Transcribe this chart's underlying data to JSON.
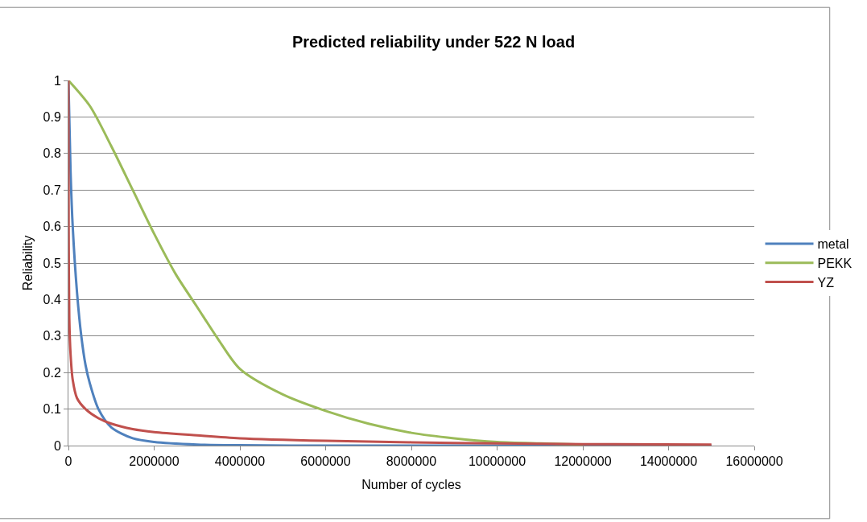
{
  "chart_data": {
    "type": "line",
    "title": "Predicted reliability under 522 N load",
    "xlabel": "Number of cycles",
    "ylabel": "Reliability",
    "xlim": [
      0,
      16000000
    ],
    "xticks": [
      0,
      2000000,
      4000000,
      6000000,
      8000000,
      10000000,
      12000000,
      14000000,
      16000000
    ],
    "ylim": [
      0,
      1
    ],
    "yticks": [
      0,
      0.1,
      0.2,
      0.3,
      0.4,
      0.5,
      0.6,
      0.7,
      0.8,
      0.9,
      1
    ],
    "grid": "y",
    "legend": "right",
    "marker": "none",
    "line_style": "solid",
    "series": [
      {
        "name": "metal",
        "color": "#4f81bd",
        "x": [
          0,
          50000,
          100000,
          200000,
          300000,
          400000,
          500000,
          700000,
          1000000,
          1500000,
          2000000,
          3000000,
          4000000,
          6000000,
          10000000,
          15000000
        ],
        "values": [
          1,
          0.75,
          0.6,
          0.42,
          0.3,
          0.22,
          0.17,
          0.1,
          0.05,
          0.02,
          0.01,
          0.003,
          0.001,
          0,
          0,
          0
        ]
      },
      {
        "name": "PEKK",
        "color": "#9bbb59",
        "x": [
          0,
          500000,
          1000000,
          1500000,
          2000000,
          2500000,
          3000000,
          3500000,
          4000000,
          5000000,
          6000000,
          7000000,
          8000000,
          9000000,
          10000000,
          11000000,
          12000000
        ],
        "values": [
          1,
          0.93,
          0.82,
          0.7,
          0.58,
          0.47,
          0.38,
          0.29,
          0.21,
          0.14,
          0.095,
          0.06,
          0.035,
          0.02,
          0.01,
          0.006,
          0.003
        ]
      },
      {
        "name": "YZ",
        "color": "#c0504d",
        "x": [
          0,
          5000,
          20000,
          50000,
          100000,
          200000,
          400000,
          700000,
          1000000,
          1500000,
          2000000,
          3000000,
          4000000,
          6000000,
          8000000,
          10000000,
          12000000,
          15000000
        ],
        "values": [
          1,
          0.6,
          0.35,
          0.25,
          0.18,
          0.13,
          0.1,
          0.075,
          0.06,
          0.045,
          0.037,
          0.028,
          0.02,
          0.013,
          0.009,
          0.006,
          0.004,
          0.003
        ]
      }
    ]
  }
}
